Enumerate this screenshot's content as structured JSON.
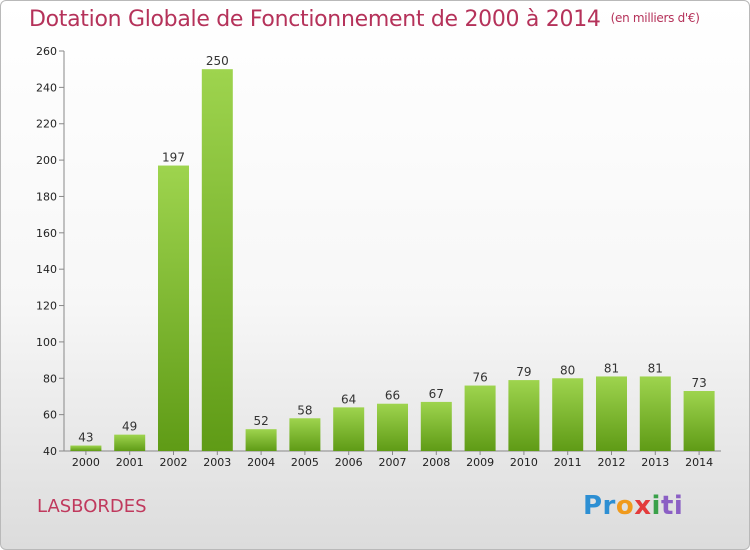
{
  "header": {
    "title": "Dotation Globale de Fonctionnement de 2000 à 2014",
    "units": "(en milliers d'€)"
  },
  "footer": {
    "place": "LASBORDES",
    "logo_parts": [
      "Pr",
      "o",
      "x",
      "i",
      "ti"
    ]
  },
  "colors": {
    "bar_top": "#9ed44e",
    "bar_bottom": "#5f9b16",
    "title": "#b5325a"
  },
  "chart_data": {
    "type": "bar",
    "title": "Dotation Globale de Fonctionnement de 2000 à 2014",
    "subtitle": "(en milliers d'€)",
    "xlabel": "",
    "ylabel": "",
    "categories": [
      "2000",
      "2001",
      "2002",
      "2003",
      "2004",
      "2005",
      "2006",
      "2007",
      "2008",
      "2009",
      "2010",
      "2011",
      "2012",
      "2013",
      "2014"
    ],
    "values": [
      43,
      49,
      197,
      250,
      52,
      58,
      64,
      66,
      67,
      76,
      79,
      80,
      81,
      81,
      73
    ],
    "ylim": [
      40,
      260
    ],
    "yticks": [
      40,
      60,
      80,
      100,
      120,
      140,
      160,
      180,
      200,
      220,
      240,
      260
    ],
    "grid": false,
    "legend": "none"
  }
}
